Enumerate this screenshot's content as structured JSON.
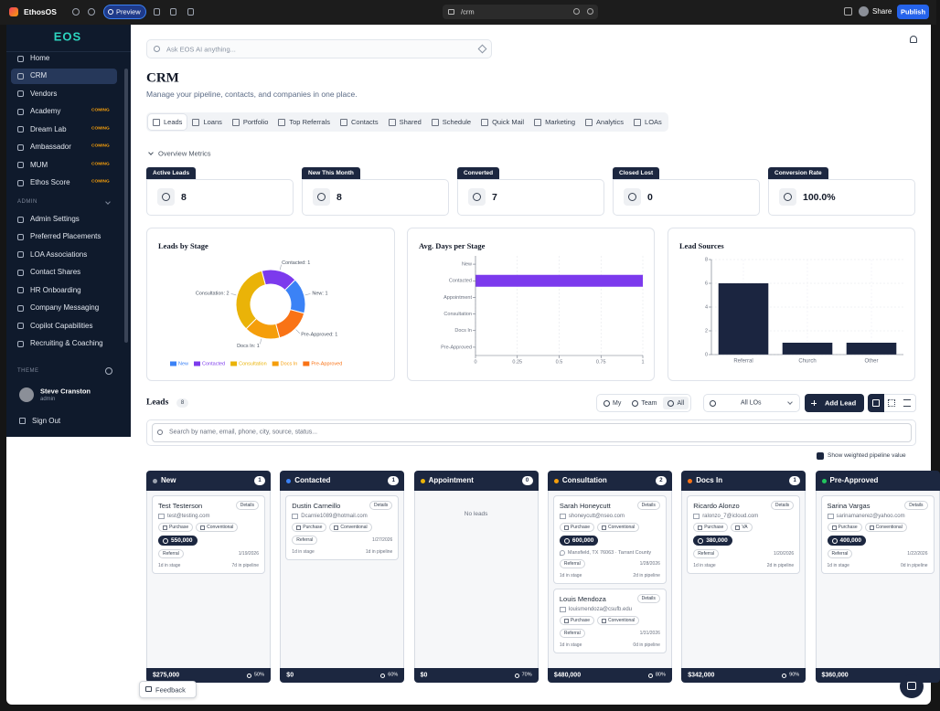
{
  "topbar": {
    "app_name": "EthosOS",
    "preview": "Preview",
    "url": "/crm",
    "share": "Share",
    "publish": "Publish"
  },
  "sidebar": {
    "logo": "EOS",
    "nav": [
      {
        "label": "Home"
      },
      {
        "label": "CRM",
        "active": true
      },
      {
        "label": "Vendors"
      },
      {
        "label": "Academy",
        "badge": "COMING"
      },
      {
        "label": "Dream Lab",
        "badge": "COMING"
      },
      {
        "label": "Ambassador",
        "badge": "COMING"
      },
      {
        "label": "MUM",
        "badge": "COMING"
      },
      {
        "label": "Ethos Score",
        "badge": "COMING"
      }
    ],
    "admin_header": "ADMIN",
    "admin_nav": [
      "Admin Settings",
      "Preferred Placements",
      "LOA Associations",
      "Contact Shares",
      "HR Onboarding",
      "Company Messaging",
      "Copilot Capabilities",
      "Recruiting & Coaching"
    ],
    "theme_label": "THEME",
    "user": {
      "name": "Steve Cranston",
      "role": "admin"
    },
    "sign_out": "Sign Out"
  },
  "header": {
    "search_placeholder": "Ask EOS AI anything...",
    "title": "CRM",
    "subtitle": "Manage your pipeline, contacts, and companies in one place."
  },
  "tabs": {
    "items": [
      "Leads",
      "Loans",
      "Portfolio",
      "Top Referrals",
      "Contacts",
      "Shared",
      "Schedule",
      "Quick Mail",
      "Marketing",
      "Analytics",
      "LOAs"
    ],
    "active": 0
  },
  "overview": {
    "title": "Overview Metrics",
    "metrics": [
      {
        "label": "Active Leads",
        "value": "8"
      },
      {
        "label": "New This Month",
        "value": "8"
      },
      {
        "label": "Converted",
        "value": "7"
      },
      {
        "label": "Closed Lost",
        "value": "0"
      },
      {
        "label": "Conversion Rate",
        "value": "100.0%"
      }
    ]
  },
  "chart_data": [
    {
      "type": "pie",
      "donut": true,
      "title": "Leads by Stage",
      "categories": [
        "New",
        "Contacted",
        "Consultation",
        "Docs In",
        "Pre-Approved"
      ],
      "values": [
        1,
        1,
        2,
        1,
        1
      ],
      "value_labels": [
        "New: 1",
        "Contacted: 1",
        "Consultation: 2",
        "Docs In: 1",
        "Pre-Approved: 1"
      ],
      "colors": [
        "#3b82f6",
        "#7c3aed",
        "#eab308",
        "#f59e0b",
        "#f97316"
      ]
    },
    {
      "type": "bar",
      "orientation": "horizontal",
      "title": "Avg. Days per Stage",
      "categories": [
        "New",
        "Contacted",
        "Appointment",
        "Consultation",
        "Docs In",
        "Pre-Approved"
      ],
      "values": [
        0,
        1,
        0,
        0,
        0,
        0
      ],
      "color": "#7c3aed",
      "xlim": [
        0,
        1
      ],
      "xticks": [
        0,
        0.25,
        0.5,
        0.75,
        1
      ],
      "grid": true
    },
    {
      "type": "bar",
      "title": "Lead Sources",
      "categories": [
        "Referral",
        "Church",
        "Other"
      ],
      "values": [
        6,
        1,
        1
      ],
      "color": "#1b2540",
      "ylim": [
        0,
        8
      ],
      "yticks": [
        0,
        2,
        4,
        6,
        8
      ],
      "grid": true
    }
  ],
  "leads": {
    "title": "Leads",
    "count": "8",
    "scope": [
      "My",
      "Team",
      "All"
    ],
    "scope_active": 2,
    "lo_filter": "All LOs",
    "add_button": "Add Lead",
    "search_placeholder": "Search by name, email, phone, city, source, status...",
    "weighted_toggle": "Show weighted pipeline value",
    "weighted_checked": true,
    "columns": [
      {
        "name": "New",
        "count": "1",
        "color": "#9ca3af",
        "total": "$275,000",
        "rate": "50%",
        "leads": [
          {
            "name": "Test Testerson",
            "details": "Details",
            "email": "test@testing.com",
            "tags": [
              "Purchase",
              "Conventional"
            ],
            "amount": "550,000",
            "source": "Referral",
            "date": "1/19/2026",
            "stage_time": "1d in stage",
            "pipeline_time": "7d in pipeline"
          }
        ]
      },
      {
        "name": "Contacted",
        "count": "1",
        "color": "#3b82f6",
        "total": "$0",
        "rate": "60%",
        "leads": [
          {
            "name": "Dustin Carneillo",
            "details": "Details",
            "email": "Dcarnie1089@hotmail.com",
            "tags": [
              "Purchase",
              "Conventional"
            ],
            "source": "Referral",
            "date": "1/27/2026",
            "stage_time": "1d in stage",
            "pipeline_time": "1d in pipeline"
          }
        ]
      },
      {
        "name": "Appointment",
        "count": "0",
        "color": "#eab308",
        "total": "$0",
        "rate": "70%",
        "empty_text": "No leads",
        "leads": []
      },
      {
        "name": "Consultation",
        "count": "2",
        "color": "#f59e0b",
        "total": "$480,000",
        "rate": "80%",
        "leads": [
          {
            "name": "Sarah Honeycutt",
            "details": "Details",
            "email": "shoneycutt@nseo.com",
            "tags": [
              "Purchase",
              "Conventional"
            ],
            "amount": "600,000",
            "location": "Mansfield, TX 76063 · Tarrant County",
            "source": "Referral",
            "date": "1/28/2026",
            "stage_time": "1d in stage",
            "pipeline_time": "2d in pipeline"
          },
          {
            "name": "Louis Mendoza",
            "details": "Details",
            "email": "louismendoza@csufb.edu",
            "tags": [
              "Purchase",
              "Conventional"
            ],
            "source": "Referral",
            "date": "1/31/2026",
            "stage_time": "1d in stage",
            "pipeline_time": "0d in pipeline"
          }
        ]
      },
      {
        "name": "Docs In",
        "count": "1",
        "color": "#f97316",
        "total": "$342,000",
        "rate": "90%",
        "leads": [
          {
            "name": "Ricardo Alonzo",
            "details": "Details",
            "email": "ralonzo_7@icloud.com",
            "tags": [
              "Purchase",
              "VA"
            ],
            "amount": "380,000",
            "source": "Referral",
            "date": "1/20/2026",
            "stage_time": "1d in stage",
            "pipeline_time": "2d in pipeline"
          }
        ]
      },
      {
        "name": "Pre-Approved",
        "color": "#22c55e",
        "total": "$360,000",
        "leads": [
          {
            "name": "Sarina Vargas",
            "details": "Details",
            "email": "sarinamanerez@yahoo.com",
            "tags": [
              "Purchase",
              "Conventional"
            ],
            "amount": "400,000",
            "source": "Referral",
            "date": "1/22/2026",
            "stage_time": "1d in stage",
            "pipeline_time": "0d in pipeline"
          }
        ]
      }
    ]
  },
  "feedback": "Feedback"
}
